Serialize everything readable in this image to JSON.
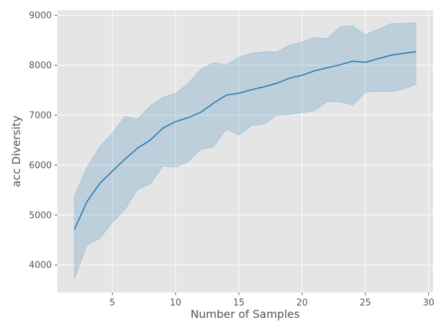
{
  "chart_data": {
    "type": "line",
    "xlabel": "Number of Samples",
    "ylabel": "acc Diversity",
    "xlim": [
      0.65,
      30.35
    ],
    "ylim": [
      3450,
      9100
    ],
    "x_ticks": [
      5,
      10,
      15,
      20,
      25,
      30
    ],
    "y_ticks": [
      4000,
      5000,
      6000,
      7000,
      8000,
      9000
    ],
    "x_tick_labels": [
      "5",
      "10",
      "15",
      "20",
      "25",
      "30"
    ],
    "y_tick_labels": [
      "4000",
      "5000",
      "6000",
      "7000",
      "8000",
      "9000"
    ],
    "grid": true,
    "legend": "none",
    "colors": {
      "line": "#1f77b4",
      "band": "#1f77b4",
      "background": "#e5e5e5",
      "grid": "#ffffff"
    },
    "series": [
      {
        "x": [
          2,
          3,
          4,
          5,
          6,
          7,
          8,
          9,
          10,
          11,
          12,
          13,
          14,
          15,
          16,
          17,
          18,
          19,
          20,
          21,
          22,
          23,
          24,
          25,
          26,
          27,
          28,
          29
        ],
        "mean": [
          4710,
          5270,
          5630,
          5880,
          6120,
          6340,
          6500,
          6740,
          6870,
          6950,
          7060,
          7240,
          7400,
          7440,
          7510,
          7570,
          7640,
          7740,
          7800,
          7890,
          7950,
          8010,
          8080,
          8060,
          8130,
          8200,
          8240,
          8270
        ],
        "upper": [
          5380,
          5960,
          6370,
          6640,
          6970,
          6920,
          7190,
          7360,
          7440,
          7640,
          7920,
          8050,
          8010,
          8160,
          8240,
          8270,
          8270,
          8400,
          8470,
          8560,
          8530,
          8770,
          8790,
          8610,
          8720,
          8830,
          8840,
          8850
        ],
        "lower": [
          3720,
          4400,
          4530,
          4850,
          5110,
          5510,
          5620,
          5980,
          5960,
          6070,
          6320,
          6360,
          6720,
          6600,
          6790,
          6820,
          7000,
          7010,
          7050,
          7090,
          7270,
          7270,
          7200,
          7460,
          7480,
          7470,
          7520,
          7620
        ]
      }
    ]
  }
}
